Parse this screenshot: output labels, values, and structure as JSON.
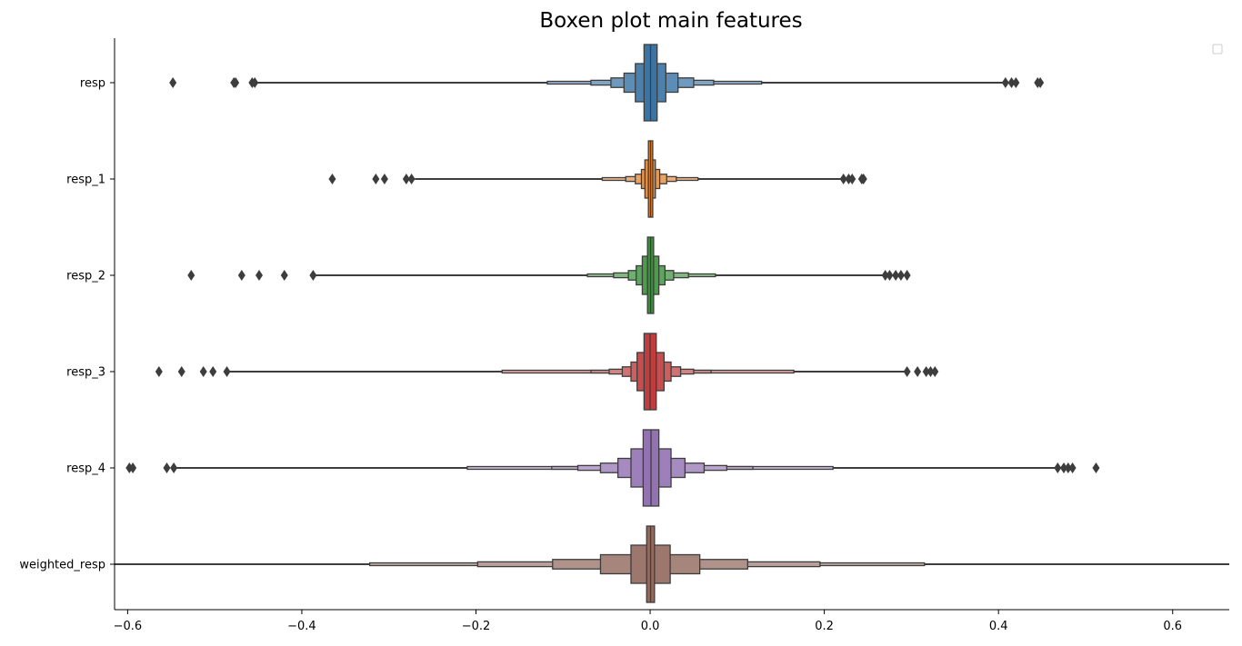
{
  "chart_data": {
    "type": "boxen",
    "title": "Boxen plot main features",
    "xlabel": "",
    "ylabel": "",
    "xlim": [
      -0.615,
      0.665
    ],
    "xticks": [
      -0.6,
      -0.4,
      -0.2,
      0.0,
      0.2,
      0.4,
      0.6
    ],
    "xtick_labels": [
      "−0.6",
      "−0.4",
      "−0.2",
      "0.0",
      "0.2",
      "0.4",
      "0.6"
    ],
    "legend": "top-right (empty)",
    "grid": false,
    "categories": [
      "resp",
      "resp_1",
      "resp_2",
      "resp_3",
      "resp_4",
      "weighted_resp"
    ],
    "series": [
      {
        "name": "resp",
        "color": "#3a74a5",
        "levels": [
          [
            -0.007,
            0.008
          ],
          [
            -0.017,
            0.018
          ],
          [
            -0.03,
            0.032
          ],
          [
            -0.045,
            0.05
          ],
          [
            -0.068,
            0.073
          ],
          [
            -0.118,
            0.128
          ]
        ],
        "whisker": [
          -0.454,
          0.405
        ],
        "outliers": [
          -0.548,
          -0.478,
          -0.476,
          -0.457,
          -0.454,
          0.408,
          0.415,
          0.42,
          0.445,
          0.448
        ]
      },
      {
        "name": "resp_1",
        "color": "#e1812c",
        "levels": [
          [
            -0.002,
            0.003
          ],
          [
            -0.006,
            0.006
          ],
          [
            -0.01,
            0.011
          ],
          [
            -0.017,
            0.019
          ],
          [
            -0.028,
            0.03
          ],
          [
            -0.055,
            0.055
          ]
        ],
        "whisker": [
          -0.27,
          0.222
        ],
        "outliers": [
          -0.365,
          -0.315,
          -0.305,
          -0.28,
          -0.274,
          0.222,
          0.228,
          0.232,
          0.243,
          0.245
        ]
      },
      {
        "name": "resp_2",
        "color": "#3a923a",
        "levels": [
          [
            -0.003,
            0.004
          ],
          [
            -0.009,
            0.01
          ],
          [
            -0.016,
            0.017
          ],
          [
            -0.025,
            0.027
          ],
          [
            -0.042,
            0.044
          ],
          [
            -0.072,
            0.075
          ]
        ],
        "whisker": [
          -0.387,
          0.27
        ],
        "outliers": [
          -0.527,
          -0.469,
          -0.449,
          -0.42,
          -0.387,
          0.27,
          0.275,
          0.282,
          0.288,
          0.295
        ]
      },
      {
        "name": "resp_3",
        "color": "#c03d3e",
        "levels": [
          [
            -0.007,
            0.007
          ],
          [
            -0.015,
            0.016
          ],
          [
            -0.022,
            0.024
          ],
          [
            -0.032,
            0.035
          ],
          [
            -0.047,
            0.05
          ],
          [
            -0.068,
            0.07
          ],
          [
            -0.17,
            0.165
          ]
        ],
        "whisker": [
          -0.486,
          0.295
        ],
        "outliers": [
          -0.564,
          -0.538,
          -0.513,
          -0.502,
          -0.486,
          0.295,
          0.307,
          0.317,
          0.322,
          0.327
        ]
      },
      {
        "name": "resp_4",
        "color": "#9372b2",
        "levels": [
          [
            -0.008,
            0.01
          ],
          [
            -0.022,
            0.024
          ],
          [
            -0.037,
            0.04
          ],
          [
            -0.057,
            0.062
          ],
          [
            -0.083,
            0.088
          ],
          [
            -0.113,
            0.118
          ],
          [
            -0.21,
            0.21
          ]
        ],
        "whisker": [
          -0.547,
          0.465
        ],
        "outliers": [
          -0.598,
          -0.594,
          -0.555,
          -0.547,
          0.468,
          0.475,
          0.48,
          0.485,
          0.512
        ]
      },
      {
        "name": "weighted_resp",
        "color": "#936a5f",
        "levels": [
          [
            -0.004,
            0.005
          ],
          [
            -0.022,
            0.023
          ],
          [
            -0.057,
            0.057
          ],
          [
            -0.112,
            0.112
          ],
          [
            -0.198,
            0.195
          ],
          [
            -0.322,
            0.315
          ]
        ],
        "whisker": [
          -0.615,
          0.665
        ],
        "outliers": []
      }
    ]
  }
}
